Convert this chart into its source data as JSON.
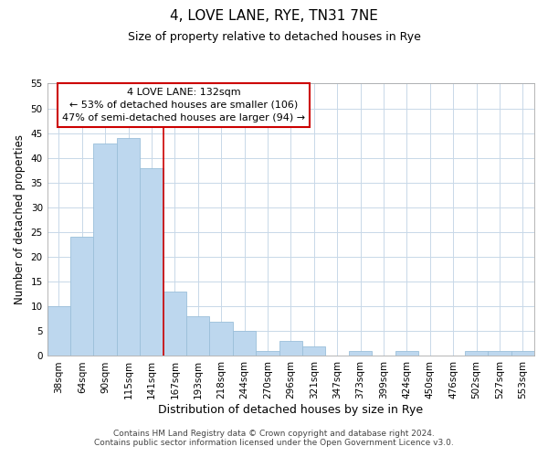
{
  "title": "4, LOVE LANE, RYE, TN31 7NE",
  "subtitle": "Size of property relative to detached houses in Rye",
  "xlabel": "Distribution of detached houses by size in Rye",
  "ylabel": "Number of detached properties",
  "bar_labels": [
    "38sqm",
    "64sqm",
    "90sqm",
    "115sqm",
    "141sqm",
    "167sqm",
    "193sqm",
    "218sqm",
    "244sqm",
    "270sqm",
    "296sqm",
    "321sqm",
    "347sqm",
    "373sqm",
    "399sqm",
    "424sqm",
    "450sqm",
    "476sqm",
    "502sqm",
    "527sqm",
    "553sqm"
  ],
  "bar_values": [
    10,
    24,
    43,
    44,
    38,
    13,
    8,
    7,
    5,
    1,
    3,
    2,
    0,
    1,
    0,
    1,
    0,
    0,
    1,
    1,
    1
  ],
  "bar_color": "#bdd7ee",
  "bar_edge_color": "#9bbfda",
  "highlight_line_index": 4,
  "highlight_color": "#cc0000",
  "ylim": [
    0,
    55
  ],
  "yticks": [
    0,
    5,
    10,
    15,
    20,
    25,
    30,
    35,
    40,
    45,
    50,
    55
  ],
  "annotation_title": "4 LOVE LANE: 132sqm",
  "annotation_line1": "← 53% of detached houses are smaller (106)",
  "annotation_line2": "47% of semi-detached houses are larger (94) →",
  "annotation_box_color": "#ffffff",
  "annotation_box_edge": "#cc0000",
  "footer_line1": "Contains HM Land Registry data © Crown copyright and database right 2024.",
  "footer_line2": "Contains public sector information licensed under the Open Government Licence v3.0.",
  "bg_color": "#ffffff",
  "grid_color": "#c8d8e8",
  "title_fontsize": 11,
  "subtitle_fontsize": 9,
  "tick_fontsize": 7.5,
  "ylabel_fontsize": 8.5,
  "xlabel_fontsize": 9,
  "annotation_fontsize": 8,
  "footer_fontsize": 6.5
}
